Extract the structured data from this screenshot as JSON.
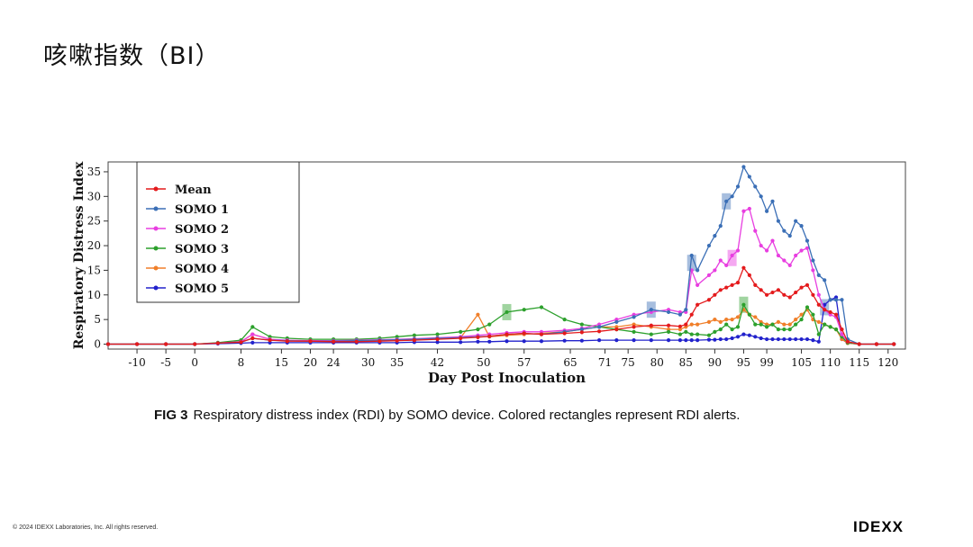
{
  "slide": {
    "title": "咳嗽指数（BI）",
    "caption_label": "FIG 3",
    "caption_text": "Respiratory distress index (RDI) by SOMO device. Colored rectangles represent RDI alerts.",
    "copyright": "© 2024 IDEXX Laboratories, Inc. All rights reserved.",
    "logo": "IDEXX"
  },
  "chart_data": {
    "type": "line",
    "xlabel": "Day Post Inoculation",
    "ylabel": "Respiratory Distress Index",
    "xlim": [
      -15,
      123
    ],
    "ylim": [
      -1,
      37
    ],
    "x_ticks": [
      -10,
      -5,
      0,
      8,
      15,
      20,
      24,
      30,
      35,
      42,
      50,
      57,
      65,
      71,
      75,
      80,
      85,
      90,
      95,
      99,
      105,
      110,
      115,
      120
    ],
    "y_ticks": [
      0,
      5,
      10,
      15,
      20,
      25,
      30,
      35
    ],
    "grid": false,
    "legend_position": "top-left",
    "x": [
      -15,
      -10,
      -5,
      0,
      4,
      8,
      10,
      13,
      16,
      20,
      24,
      28,
      32,
      35,
      38,
      42,
      46,
      49,
      51,
      54,
      57,
      60,
      64,
      67,
      70,
      73,
      76,
      79,
      82,
      84,
      85,
      86,
      87,
      89,
      90,
      91,
      92,
      93,
      94,
      95,
      96,
      97,
      98,
      99,
      100,
      101,
      102,
      103,
      104,
      105,
      106,
      107,
      108,
      109,
      110,
      111,
      112,
      113,
      115,
      118,
      121
    ],
    "series": [
      {
        "name": "Mean",
        "color": "#e41a1c",
        "values": [
          0,
          0,
          0,
          0,
          0.2,
          0.4,
          1.2,
          0.8,
          0.6,
          0.6,
          0.5,
          0.5,
          0.6,
          0.7,
          0.8,
          1.0,
          1.2,
          1.4,
          1.6,
          2.0,
          2.2,
          2.0,
          2.2,
          2.4,
          2.6,
          3.0,
          3.5,
          3.8,
          3.8,
          3.6,
          4.0,
          6.0,
          8.0,
          9.0,
          10.0,
          11.0,
          11.5,
          12.0,
          12.5,
          15.5,
          14.0,
          12.0,
          11.0,
          10.0,
          10.5,
          11.0,
          10.0,
          9.5,
          10.5,
          11.5,
          12.0,
          10.0,
          8.0,
          7.0,
          6.5,
          6.0,
          3.0,
          0.5,
          0,
          0,
          0
        ]
      },
      {
        "name": "SOMO 1",
        "color": "#3b6fb6",
        "values": [
          0,
          0,
          0,
          0,
          0.2,
          0.4,
          1.2,
          0.8,
          0.7,
          0.6,
          0.6,
          0.7,
          0.8,
          0.9,
          1.0,
          1.2,
          1.3,
          1.5,
          1.6,
          2.0,
          2.2,
          2.0,
          2.5,
          3.0,
          3.5,
          4.5,
          5.5,
          7.0,
          6.5,
          6.0,
          7.0,
          18.0,
          15.0,
          20.0,
          22.0,
          24.0,
          29.0,
          30.0,
          32.0,
          36.0,
          34.0,
          32.0,
          30.0,
          27.0,
          29.0,
          25.0,
          23.0,
          22.0,
          25.0,
          24.0,
          21.0,
          17.0,
          14.0,
          13.0,
          9.0,
          9.0,
          9.0,
          1.0,
          0,
          0,
          0
        ]
      },
      {
        "name": "SOMO 2",
        "color": "#e83ee0",
        "values": [
          0,
          0,
          0,
          0,
          0.2,
          0.5,
          2.0,
          1.0,
          0.8,
          0.7,
          0.7,
          0.8,
          0.9,
          1.0,
          1.1,
          1.3,
          1.5,
          1.8,
          2.0,
          2.3,
          2.5,
          2.5,
          2.8,
          3.2,
          4.0,
          5.0,
          6.0,
          6.5,
          7.0,
          6.5,
          6.5,
          15.0,
          12.0,
          14.0,
          15.0,
          17.0,
          16.0,
          18.0,
          19.0,
          27.0,
          27.5,
          23.0,
          20.0,
          19.0,
          21.0,
          18.0,
          17.0,
          16.0,
          18.0,
          19.0,
          19.5,
          15.0,
          10.0,
          7.0,
          6.0,
          5.5,
          2.0,
          0.5,
          0,
          0,
          0
        ]
      },
      {
        "name": "SOMO 3",
        "color": "#2ca02c",
        "values": [
          0,
          0,
          0,
          0,
          0.3,
          0.8,
          3.5,
          1.5,
          1.2,
          1.0,
          1.0,
          1.0,
          1.2,
          1.5,
          1.8,
          2.0,
          2.5,
          3.0,
          4.0,
          6.5,
          7.0,
          7.5,
          5.0,
          4.0,
          3.5,
          3.0,
          2.5,
          2.0,
          2.5,
          2.0,
          2.5,
          2.0,
          2.0,
          1.8,
          2.5,
          3.0,
          4.0,
          3.0,
          3.5,
          8.0,
          6.0,
          4.0,
          4.0,
          3.5,
          4.0,
          3.0,
          3.0,
          3.0,
          4.0,
          5.0,
          7.5,
          6.0,
          2.0,
          4.0,
          3.5,
          3.0,
          1.5,
          0.3,
          0,
          0,
          0
        ]
      },
      {
        "name": "SOMO 4",
        "color": "#f07f2a",
        "values": [
          0,
          0,
          0,
          0,
          0.2,
          0.5,
          2.0,
          1.0,
          0.7,
          0.6,
          0.6,
          0.7,
          0.8,
          0.9,
          1.0,
          1.1,
          1.3,
          6.0,
          1.5,
          1.8,
          2.0,
          2.2,
          2.5,
          3.0,
          3.5,
          3.5,
          4.0,
          3.5,
          3.0,
          3.0,
          3.5,
          4.0,
          4.0,
          4.5,
          5.0,
          4.5,
          5.0,
          5.0,
          5.5,
          7.0,
          6.0,
          5.5,
          4.5,
          4.0,
          4.0,
          4.5,
          4.0,
          4.0,
          5.0,
          6.0,
          7.0,
          5.0,
          4.5,
          4.0,
          3.5,
          3.0,
          1.0,
          0.2,
          0,
          0,
          0
        ]
      },
      {
        "name": "SOMO 5",
        "color": "#2222cc",
        "values": [
          0,
          0,
          0,
          0,
          0.1,
          0.2,
          0.3,
          0.3,
          0.3,
          0.3,
          0.3,
          0.3,
          0.3,
          0.3,
          0.4,
          0.4,
          0.4,
          0.5,
          0.5,
          0.6,
          0.6,
          0.6,
          0.7,
          0.7,
          0.8,
          0.8,
          0.8,
          0.8,
          0.8,
          0.8,
          0.8,
          0.8,
          0.8,
          0.9,
          0.9,
          1.0,
          1.0,
          1.2,
          1.5,
          2.0,
          1.8,
          1.5,
          1.2,
          1.0,
          1.0,
          1.0,
          1.0,
          1.0,
          1.0,
          1.0,
          1.0,
          0.8,
          0.5,
          8.0,
          9.0,
          9.5,
          1.0,
          0.2,
          0,
          0,
          0
        ]
      }
    ],
    "alerts": [
      {
        "series": "SOMO 3",
        "x": 54,
        "y": 6.5
      },
      {
        "series": "SOMO 1",
        "x": 79,
        "y": 7.0
      },
      {
        "series": "SOMO 1",
        "x": 86,
        "y": 16.5
      },
      {
        "series": "SOMO 1",
        "x": 92,
        "y": 29.0
      },
      {
        "series": "SOMO 2",
        "x": 93,
        "y": 17.5
      },
      {
        "series": "SOMO 3",
        "x": 95,
        "y": 8.0
      },
      {
        "series": "SOMO 1",
        "x": 109,
        "y": 7.5
      }
    ]
  }
}
